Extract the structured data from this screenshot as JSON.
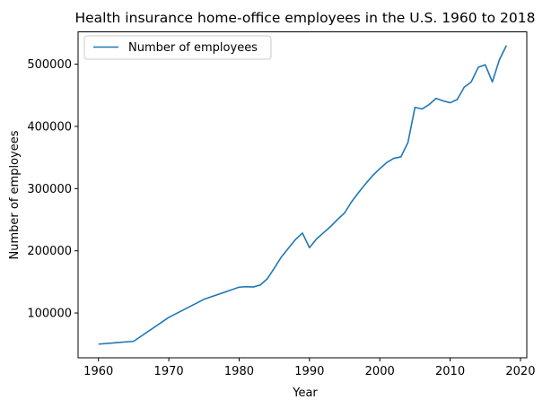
{
  "chart_data": {
    "type": "line",
    "title": "Health insurance home-office employees in the U.S. 1960 to 2018",
    "xlabel": "Year",
    "ylabel": "Number of employees",
    "xlim": [
      1957.1,
      2020.9
    ],
    "ylim": [
      28000,
      552000
    ],
    "xticks": [
      1960,
      1970,
      1980,
      1990,
      2000,
      2010,
      2020
    ],
    "yticks": [
      100000,
      200000,
      300000,
      400000,
      500000
    ],
    "grid": false,
    "legend_position": "upper-left",
    "series": [
      {
        "name": "Number of employees",
        "color": "#1f77b4",
        "x": [
          1960,
          1965,
          1970,
          1975,
          1980,
          1981,
          1982,
          1983,
          1984,
          1985,
          1986,
          1987,
          1988,
          1989,
          1990,
          1991,
          1992,
          1993,
          1994,
          1995,
          1996,
          1997,
          1998,
          1999,
          2000,
          2001,
          2002,
          2003,
          2004,
          2005,
          2006,
          2007,
          2008,
          2009,
          2010,
          2011,
          2012,
          2013,
          2014,
          2015,
          2016,
          2017,
          2018
        ],
        "y": [
          50000,
          54500,
          93000,
          122000,
          141500,
          142300,
          141800,
          145000,
          155000,
          172000,
          190000,
          204000,
          218000,
          228500,
          205000,
          219000,
          229000,
          239000,
          250500,
          261000,
          279000,
          294000,
          308000,
          321000,
          332000,
          342000,
          348700,
          351000,
          374000,
          430500,
          428000,
          435000,
          445000,
          441000,
          438000,
          443000,
          463000,
          471500,
          495000,
          499000,
          471500,
          507000,
          530000
        ]
      }
    ]
  }
}
